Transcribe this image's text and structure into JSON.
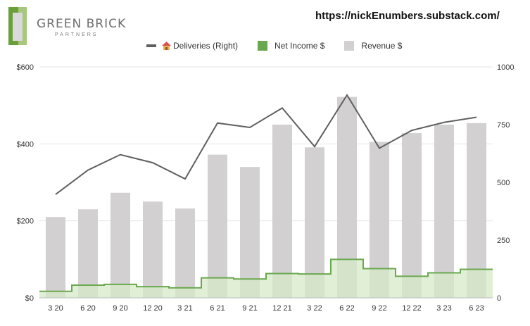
{
  "header": {
    "logo_name": "GREEN BRICK",
    "logo_sub": "PARTNERS",
    "url": "https://nickEnumbers.substack.com/"
  },
  "colors": {
    "revenue": "#d2d0d1",
    "net_income_line": "#6aa84f",
    "net_income_fill": "#d6e9c8",
    "deliveries": "#5f5f5f",
    "grid": "#e6e6e6"
  },
  "chart_data": {
    "type": "bar",
    "categories": [
      "3 20",
      "6 20",
      "9 20",
      "12 20",
      "3 21",
      "6 21",
      "9 21",
      "12 21",
      "3 22",
      "6 22",
      "9 22",
      "12 22",
      "3 23",
      "6 23"
    ],
    "series": [
      {
        "name": "Revenue $",
        "kind": "bar",
        "axis": "left",
        "values": [
          210,
          230,
          273,
          250,
          232,
          372,
          340,
          450,
          391,
          522,
          405,
          428,
          450,
          454
        ]
      },
      {
        "name": "Net Income $",
        "kind": "step-area",
        "axis": "left",
        "values": [
          17,
          33,
          35,
          29,
          26,
          52,
          49,
          63,
          62,
          100,
          76,
          56,
          65,
          74
        ]
      },
      {
        "name": "Deliveries (Right)",
        "kind": "line",
        "axis": "right",
        "icon": "house-icon",
        "values": [
          448,
          553,
          620,
          585,
          515,
          757,
          738,
          822,
          655,
          878,
          648,
          725,
          760,
          782
        ]
      }
    ],
    "y_left": {
      "min": 0,
      "max": 600,
      "ticks": [
        "$0",
        "$200",
        "$400",
        "$600"
      ],
      "tick_values": [
        0,
        200,
        400,
        600
      ]
    },
    "y_right": {
      "min": 0,
      "max": 1000,
      "ticks": [
        "0",
        "250",
        "500",
        "750",
        "1000"
      ],
      "tick_values": [
        0,
        250,
        500,
        750,
        1000
      ]
    },
    "grid": true,
    "legend_position": "top"
  }
}
